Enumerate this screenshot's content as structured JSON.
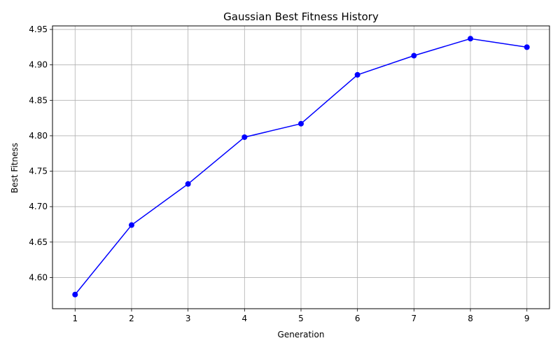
{
  "chart_data": {
    "type": "line",
    "title": "Gaussian Best Fitness History",
    "xlabel": "Generation",
    "ylabel": "Best Fitness",
    "x": [
      1,
      2,
      3,
      4,
      5,
      6,
      7,
      8,
      9
    ],
    "series": [
      {
        "values": [
          4.576,
          4.674,
          4.732,
          4.798,
          4.817,
          4.886,
          4.913,
          4.937,
          4.925
        ],
        "color": "#0000ff",
        "marker": "circle"
      }
    ],
    "xlim": [
      0.6,
      9.4
    ],
    "ylim": [
      4.556,
      4.955
    ],
    "xticks": [
      1,
      2,
      3,
      4,
      5,
      6,
      7,
      8,
      9
    ],
    "yticks": [
      "4.60",
      "4.65",
      "4.70",
      "4.75",
      "4.80",
      "4.85",
      "4.90",
      "4.95"
    ],
    "grid": true,
    "grid_color": "#b0b0b0"
  }
}
